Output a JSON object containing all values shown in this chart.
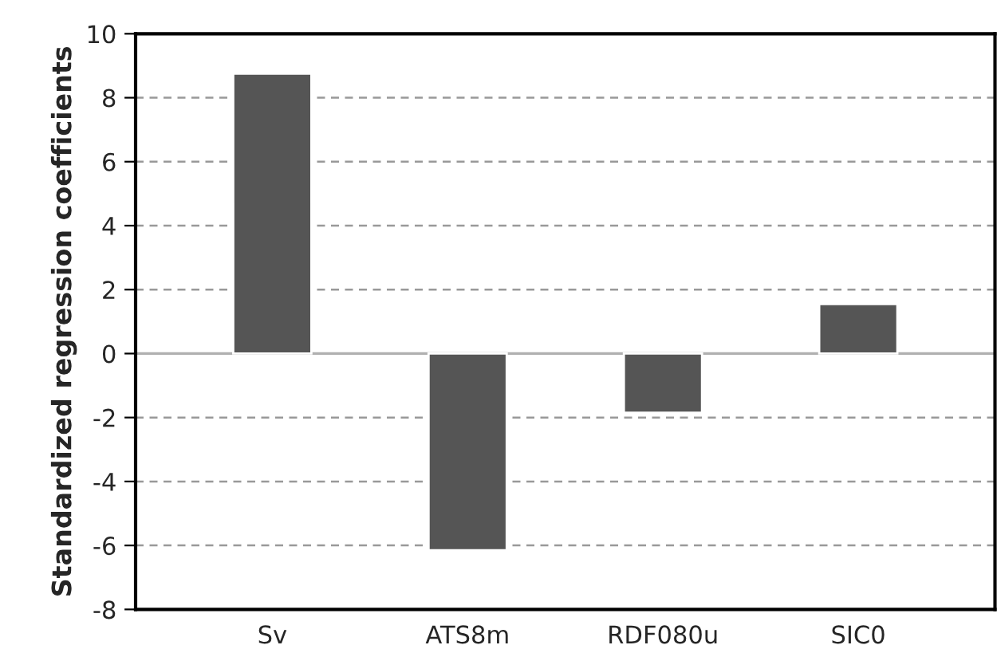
{
  "chart_data": {
    "type": "bar",
    "ylabel": "Standardized regression coefficients",
    "categories": [
      "Sv",
      "ATS8m",
      "RDF080u",
      "SIC0"
    ],
    "values": [
      8.75,
      -6.15,
      -1.85,
      1.55
    ],
    "color": "#555555",
    "ylim": [
      -8,
      10
    ],
    "yticks": [
      -8,
      -6,
      -4,
      -2,
      0,
      2,
      4,
      6,
      8,
      10
    ],
    "grid": "y",
    "line_style": "dashed",
    "ref_lines": [
      {
        "axis": "y",
        "value": 0,
        "color": "#b0b0b0"
      }
    ]
  }
}
